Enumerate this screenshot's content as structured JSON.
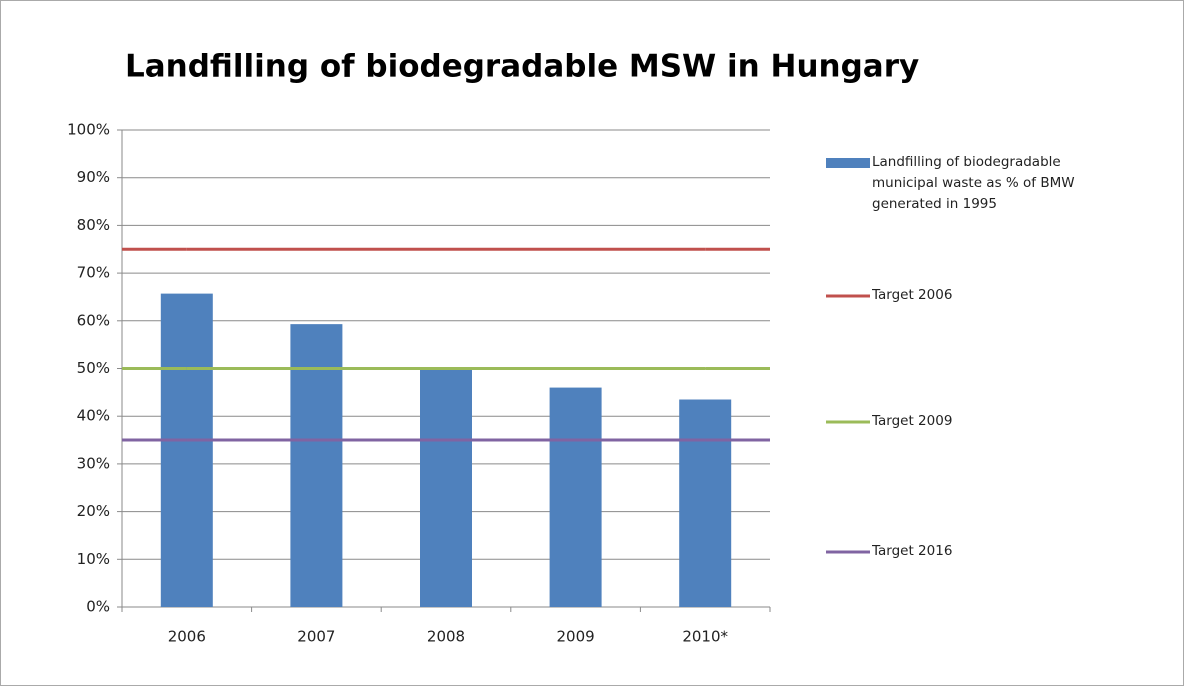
{
  "chart_data": {
    "type": "bar",
    "title": "Landfilling of biodegradable MSW in Hungary",
    "categories": [
      "2006",
      "2007",
      "2008",
      "2009",
      "2010*"
    ],
    "series": [
      {
        "name": "Landfilling of biodegradable municipal waste as % of BMW generated in 1995",
        "type": "bar",
        "color": "#4f81bd",
        "values": [
          65.7,
          59.3,
          49.7,
          46,
          43.5
        ]
      },
      {
        "name": "Target 2006",
        "type": "line",
        "color": "#c0504d",
        "values": [
          75,
          75,
          75,
          75,
          75
        ]
      },
      {
        "name": "Target 2009",
        "type": "line",
        "color": "#9bbb59",
        "values": [
          50,
          50,
          50,
          50,
          50
        ]
      },
      {
        "name": "Target 2016",
        "type": "line",
        "color": "#8064a2",
        "values": [
          35,
          35,
          35,
          35,
          35
        ]
      }
    ],
    "ylim": [
      0,
      100
    ],
    "yticks": [
      {
        "value": 0,
        "label": "0%"
      },
      {
        "value": 10,
        "label": "10%"
      },
      {
        "value": 20,
        "label": "20%"
      },
      {
        "value": 30,
        "label": "30%"
      },
      {
        "value": 40,
        "label": "40%"
      },
      {
        "value": 50,
        "label": "50%"
      },
      {
        "value": 60,
        "label": "60%"
      },
      {
        "value": 70,
        "label": "70%"
      },
      {
        "value": 80,
        "label": "80%"
      },
      {
        "value": 90,
        "label": "90%"
      },
      {
        "value": 100,
        "label": "100%"
      }
    ],
    "grid": true,
    "legend": "right"
  }
}
